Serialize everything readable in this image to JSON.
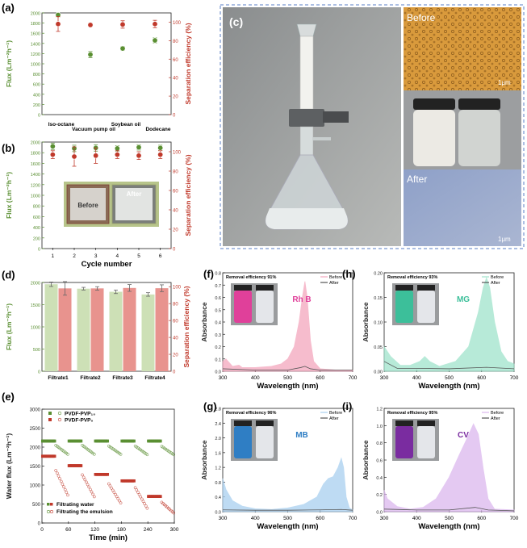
{
  "panels": {
    "a": {
      "label": "(a)",
      "chart_data": {
        "type": "scatter",
        "categories": [
          "Iso-octane",
          "Vacuum pump oil",
          "Soybean oil",
          "Dodecane"
        ],
        "series": [
          {
            "values": [
              1960,
              1180,
              1300,
              1460
            ],
            "errors": [
              40,
              60,
              40,
              50
            ],
            "color": "#5a8f32"
          },
          {
            "values": [
              98,
              97,
              97.5,
              98
            ],
            "errors": [
              8,
              2,
              4,
              4
            ],
            "color": "#c0392b"
          }
        ],
        "ylabel": "Flux (Lm⁻²h⁻¹)",
        "ylim": [
          0,
          2000
        ],
        "yticks": [
          0,
          200,
          400,
          600,
          800,
          1000,
          1200,
          1400,
          1600,
          1800,
          2000
        ],
        "y2label": "Separation efficiency (%)",
        "y2lim": [
          0,
          110
        ],
        "y2ticks": [
          0,
          20,
          40,
          60,
          80,
          100
        ]
      }
    },
    "b": {
      "label": "(b)",
      "chart_data": {
        "type": "scatter",
        "x": [
          1,
          2,
          3,
          4,
          5,
          6
        ],
        "series": [
          {
            "values": [
              1920,
              1880,
              1890,
              1880,
              1900,
              1890
            ],
            "errors": [
              60,
              60,
              60,
              50,
              50,
              50
            ],
            "color": "#5a8f32"
          },
          {
            "values": [
              97,
              95,
              96,
              97,
              96,
              97
            ],
            "errors": [
              4,
              10,
              8,
              4,
              4,
              4
            ],
            "color": "#c0392b"
          }
        ],
        "xlabel": "Cycle number",
        "ylabel": "Flux (Lm⁻²h⁻¹)",
        "ylim": [
          0,
          2000
        ],
        "yticks": [
          0,
          200,
          400,
          600,
          800,
          1000,
          1200,
          1400,
          1600,
          1800,
          2000
        ],
        "y2label": "Separation efficiency (%)",
        "y2lim": [
          0,
          110
        ],
        "y2ticks": [
          0,
          20,
          40,
          60,
          80,
          100
        ],
        "inset": {
          "before": "Before",
          "after": "After"
        }
      }
    },
    "c": {
      "label": "(c)",
      "before": "Before",
      "after": "After",
      "scale": "1μm"
    },
    "d": {
      "label": "(d)",
      "chart_data": {
        "type": "bar",
        "categories": [
          "Filtrate1",
          "Filtrate2",
          "Filtrate3",
          "Filtrate4"
        ],
        "series": [
          {
            "values": [
              1960,
              1860,
              1790,
              1730
            ],
            "errors": [
              50,
              30,
              40,
              40
            ],
            "color": "#cde0b6"
          },
          {
            "values": [
              98,
              98,
              98.5,
              98.2
            ],
            "errors": [
              8,
              2,
              4,
              4
            ],
            "color": "#e8938e"
          }
        ],
        "ylabel": "Flux (Lm⁻²h⁻¹)",
        "ylim": [
          0,
          2000
        ],
        "yticks": [
          0,
          500,
          1000,
          1500,
          2000
        ],
        "y2label": "Separation efficiency (%)",
        "y2lim": [
          0,
          105
        ],
        "y2ticks": [
          0,
          20,
          40,
          60,
          80,
          100
        ]
      }
    },
    "e": {
      "label": "(e)",
      "chart_data": {
        "type": "scatter",
        "legend_top": [
          "PVDF-PVP₁₀",
          "PVDF-PVP₀"
        ],
        "legend_bottom": [
          "Filtrating water",
          "Filtrating the emulsion"
        ],
        "water1": [
          [
            0,
            30,
            2160
          ],
          [
            60,
            90,
            2160
          ],
          [
            120,
            150,
            2160
          ],
          [
            180,
            210,
            2160
          ],
          [
            240,
            270,
            2160
          ]
        ],
        "water0": [
          [
            0,
            30,
            1760
          ],
          [
            60,
            90,
            1510
          ],
          [
            120,
            150,
            1280
          ],
          [
            180,
            210,
            1110
          ],
          [
            240,
            270,
            700
          ]
        ],
        "emul1": [
          [
            30,
            60,
            2060,
            1800
          ],
          [
            90,
            120,
            2060,
            1800
          ],
          [
            150,
            180,
            2040,
            1800
          ],
          [
            210,
            240,
            2040,
            1790
          ],
          [
            270,
            300,
            2030,
            1790
          ]
        ],
        "emul0": [
          [
            30,
            60,
            1420,
            700
          ],
          [
            90,
            120,
            1300,
            660
          ],
          [
            150,
            180,
            1060,
            500
          ],
          [
            210,
            240,
            960,
            360
          ],
          [
            270,
            300,
            560,
            250
          ]
        ],
        "xlabel": "Time (min)",
        "ylabel": "Water flux (Lm⁻²h⁻¹)",
        "xlim": [
          0,
          300
        ],
        "xticks": [
          0,
          60,
          120,
          180,
          240,
          300
        ],
        "ylim": [
          0,
          3000
        ],
        "yticks": [
          0,
          500,
          1000,
          1500,
          2000,
          2500,
          3000
        ],
        "colors": {
          "pvp10": "#5a8f32",
          "pvp0": "#c0392b"
        }
      }
    },
    "f": {
      "label": "(f)",
      "annotation": "Removal efficiency 91%",
      "dye": "Rh B",
      "dye_color": "#e0409a",
      "chart_data": {
        "type": "area",
        "xlim": [
          300,
          700
        ],
        "ylim": [
          0,
          0.8
        ],
        "xticks": [
          300,
          400,
          500,
          600,
          700
        ],
        "yticks": [
          0.0,
          0.1,
          0.2,
          0.3,
          0.4,
          0.5,
          0.6,
          0.7,
          0.8
        ],
        "xlabel": "Wavelength (nm)",
        "ylabel": "Absorbance",
        "before": {
          "name": "Before",
          "color": "#f4a6bd",
          "points": [
            [
              300,
              0.08
            ],
            [
              310,
              0.1
            ],
            [
              330,
              0.04
            ],
            [
              350,
              0.05
            ],
            [
              360,
              0.03
            ],
            [
              400,
              0.03
            ],
            [
              450,
              0.04
            ],
            [
              480,
              0.06
            ],
            [
              500,
              0.1
            ],
            [
              520,
              0.2
            ],
            [
              535,
              0.4
            ],
            [
              545,
              0.6
            ],
            [
              553,
              0.73
            ],
            [
              560,
              0.6
            ],
            [
              570,
              0.25
            ],
            [
              580,
              0.08
            ],
            [
              600,
              0.02
            ],
            [
              650,
              0.01
            ],
            [
              700,
              0.01
            ]
          ]
        },
        "after": {
          "name": "After",
          "color": "#555555",
          "points": [
            [
              300,
              0.02
            ],
            [
              400,
              0.01
            ],
            [
              500,
              0.01
            ],
            [
              540,
              0.03
            ],
            [
              553,
              0.04
            ],
            [
              570,
              0.02
            ],
            [
              600,
              0.01
            ],
            [
              700,
              0.01
            ]
          ]
        }
      }
    },
    "g": {
      "label": "(g)",
      "annotation": "Removal efficiency 96%",
      "dye": "MB",
      "dye_color": "#2f7ec4",
      "chart_data": {
        "type": "area",
        "xlim": [
          300,
          700
        ],
        "ylim": [
          0,
          2.8
        ],
        "xticks": [
          300,
          400,
          500,
          600,
          700
        ],
        "yticks": [
          0.0,
          0.4,
          0.8,
          1.2,
          1.6,
          2.0,
          2.4,
          2.8
        ],
        "xlabel": "Wavelength (nm)",
        "ylabel": "Absorbance",
        "before": {
          "name": "Before",
          "color": "#a9d0f0",
          "points": [
            [
              300,
              0.9
            ],
            [
              310,
              0.6
            ],
            [
              330,
              0.3
            ],
            [
              360,
              0.15
            ],
            [
              400,
              0.08
            ],
            [
              450,
              0.06
            ],
            [
              500,
              0.1
            ],
            [
              550,
              0.2
            ],
            [
              590,
              0.4
            ],
            [
              610,
              0.75
            ],
            [
              625,
              0.9
            ],
            [
              640,
              0.95
            ],
            [
              655,
              1.2
            ],
            [
              665,
              1.45
            ],
            [
              672,
              1.2
            ],
            [
              680,
              0.4
            ],
            [
              690,
              0.1
            ],
            [
              700,
              0.05
            ]
          ]
        },
        "after": {
          "name": "After",
          "color": "#555555",
          "points": [
            [
              300,
              0.05
            ],
            [
              400,
              0.04
            ],
            [
              500,
              0.04
            ],
            [
              600,
              0.05
            ],
            [
              665,
              0.06
            ],
            [
              700,
              0.04
            ]
          ]
        }
      }
    },
    "h": {
      "label": "(h)",
      "annotation": "Removal efficiency 93%",
      "dye": "MG",
      "dye_color": "#3cbf9a",
      "chart_data": {
        "type": "area",
        "xlim": [
          300,
          700
        ],
        "ylim": [
          0,
          0.2
        ],
        "xticks": [
          300,
          400,
          500,
          600,
          700
        ],
        "yticks": [
          0.0,
          0.05,
          0.1,
          0.15,
          0.2
        ],
        "xlabel": "Wavelength (nm)",
        "ylabel": "Absorbance",
        "before": {
          "name": "Before",
          "color": "#9fe3cb",
          "points": [
            [
              300,
              0.05
            ],
            [
              320,
              0.03
            ],
            [
              350,
              0.012
            ],
            [
              380,
              0.012
            ],
            [
              410,
              0.02
            ],
            [
              425,
              0.03
            ],
            [
              440,
              0.02
            ],
            [
              470,
              0.01
            ],
            [
              520,
              0.02
            ],
            [
              560,
              0.05
            ],
            [
              590,
              0.12
            ],
            [
              605,
              0.17
            ],
            [
              615,
              0.19
            ],
            [
              625,
              0.17
            ],
            [
              640,
              0.1
            ],
            [
              660,
              0.04
            ],
            [
              680,
              0.02
            ],
            [
              700,
              0.015
            ]
          ]
        },
        "after": {
          "name": "After",
          "color": "#555555",
          "points": [
            [
              300,
              0.02
            ],
            [
              340,
              0.006
            ],
            [
              400,
              0.006
            ],
            [
              500,
              0.005
            ],
            [
              615,
              0.008
            ],
            [
              700,
              0.005
            ]
          ]
        }
      }
    },
    "i": {
      "label": "(i)",
      "annotation": "Removal efficiency 95%",
      "dye": "CV",
      "dye_color": "#7a2ca0",
      "chart_data": {
        "type": "area",
        "xlim": [
          300,
          700
        ],
        "ylim": [
          0,
          1.2
        ],
        "xticks": [
          300,
          400,
          500,
          600,
          700
        ],
        "yticks": [
          0.0,
          0.2,
          0.4,
          0.6,
          0.8,
          1.0,
          1.2
        ],
        "xlabel": "Wavelength (nm)",
        "ylabel": "Absorbance",
        "before": {
          "name": "Before",
          "color": "#dbb7ee",
          "points": [
            [
              300,
              0.25
            ],
            [
              310,
              0.15
            ],
            [
              340,
              0.06
            ],
            [
              380,
              0.03
            ],
            [
              420,
              0.05
            ],
            [
              460,
              0.15
            ],
            [
              500,
              0.4
            ],
            [
              530,
              0.65
            ],
            [
              555,
              0.85
            ],
            [
              575,
              1.02
            ],
            [
              590,
              0.9
            ],
            [
              605,
              0.5
            ],
            [
              620,
              0.15
            ],
            [
              640,
              0.03
            ],
            [
              700,
              0.02
            ]
          ]
        },
        "after": {
          "name": "After",
          "color": "#555555",
          "points": [
            [
              300,
              0.03
            ],
            [
              400,
              0.02
            ],
            [
              500,
              0.02
            ],
            [
              580,
              0.05
            ],
            [
              620,
              0.02
            ],
            [
              700,
              0.01
            ]
          ]
        }
      }
    }
  }
}
